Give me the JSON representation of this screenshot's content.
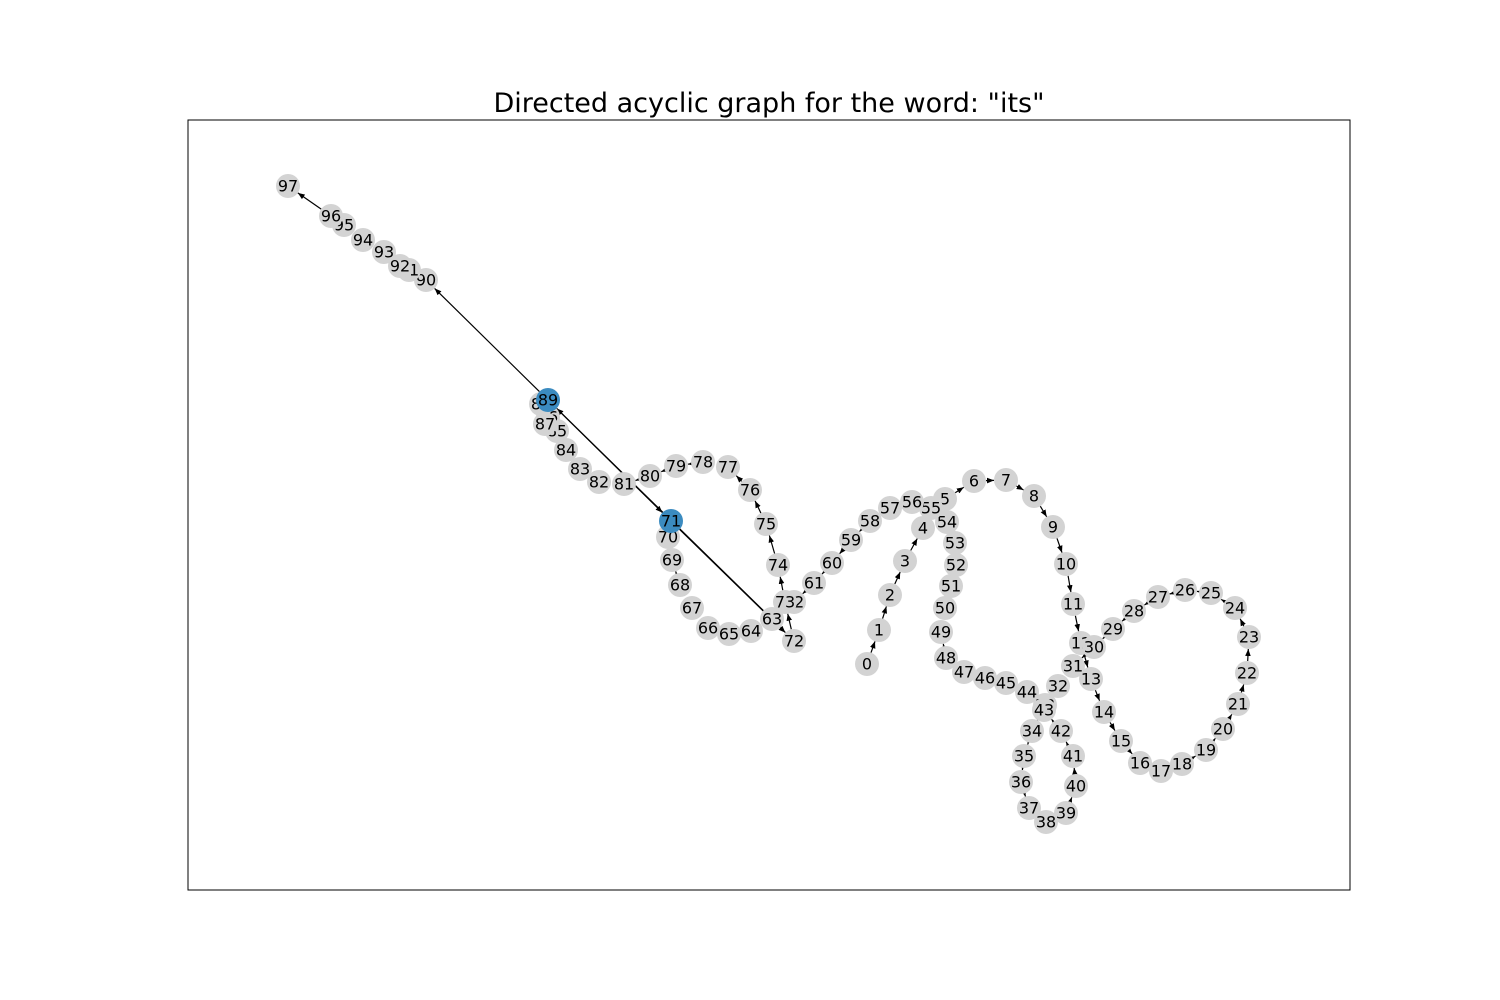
{
  "title": "Directed acyclic graph for the word: \"its\"",
  "colors": {
    "node": "#d3d3d3",
    "highlight": "#3b8bc0",
    "edge": "#000000",
    "frame": "#000000"
  },
  "graph": {
    "nodes": [
      "0",
      "1",
      "2",
      "3",
      "4",
      "5",
      "6",
      "7",
      "8",
      "9",
      "10",
      "11",
      "12",
      "13",
      "14",
      "15",
      "16",
      "17",
      "18",
      "19",
      "20",
      "21",
      "22",
      "23",
      "24",
      "25",
      "26",
      "27",
      "28",
      "29",
      "30",
      "31",
      "32",
      "33",
      "34",
      "35",
      "36",
      "37",
      "38",
      "39",
      "40",
      "41",
      "42",
      "43",
      "44",
      "45",
      "46",
      "47",
      "48",
      "49",
      "50",
      "51",
      "52",
      "53",
      "54",
      "55",
      "56",
      "57",
      "58",
      "59",
      "60",
      "61",
      "62",
      "63",
      "64",
      "65",
      "66",
      "67",
      "68",
      "69",
      "70",
      "71",
      "72",
      "73",
      "74",
      "75",
      "76",
      "77",
      "78",
      "79",
      "80",
      "81",
      "82",
      "83",
      "84",
      "85",
      "86",
      "87",
      "88",
      "89",
      "90",
      "91",
      "92",
      "93",
      "94",
      "95",
      "96",
      "97"
    ],
    "highlighted": [
      "71",
      "89"
    ],
    "edges": [
      [
        "0",
        "1"
      ],
      [
        "1",
        "2"
      ],
      [
        "2",
        "3"
      ],
      [
        "3",
        "4"
      ],
      [
        "4",
        "5"
      ],
      [
        "5",
        "6"
      ],
      [
        "6",
        "7"
      ],
      [
        "7",
        "8"
      ],
      [
        "8",
        "9"
      ],
      [
        "9",
        "10"
      ],
      [
        "10",
        "11"
      ],
      [
        "11",
        "12"
      ],
      [
        "12",
        "13"
      ],
      [
        "13",
        "14"
      ],
      [
        "14",
        "15"
      ],
      [
        "15",
        "16"
      ],
      [
        "16",
        "17"
      ],
      [
        "17",
        "18"
      ],
      [
        "18",
        "19"
      ],
      [
        "19",
        "20"
      ],
      [
        "20",
        "21"
      ],
      [
        "21",
        "22"
      ],
      [
        "22",
        "23"
      ],
      [
        "23",
        "24"
      ],
      [
        "24",
        "25"
      ],
      [
        "25",
        "26"
      ],
      [
        "26",
        "27"
      ],
      [
        "27",
        "28"
      ],
      [
        "28",
        "29"
      ],
      [
        "29",
        "30"
      ],
      [
        "30",
        "31"
      ],
      [
        "31",
        "32"
      ],
      [
        "32",
        "33"
      ],
      [
        "33",
        "34"
      ],
      [
        "34",
        "35"
      ],
      [
        "35",
        "36"
      ],
      [
        "36",
        "37"
      ],
      [
        "37",
        "38"
      ],
      [
        "38",
        "39"
      ],
      [
        "39",
        "40"
      ],
      [
        "40",
        "41"
      ],
      [
        "41",
        "42"
      ],
      [
        "42",
        "43"
      ],
      [
        "43",
        "44"
      ],
      [
        "44",
        "45"
      ],
      [
        "45",
        "46"
      ],
      [
        "46",
        "47"
      ],
      [
        "47",
        "48"
      ],
      [
        "48",
        "49"
      ],
      [
        "49",
        "50"
      ],
      [
        "50",
        "51"
      ],
      [
        "51",
        "52"
      ],
      [
        "52",
        "53"
      ],
      [
        "53",
        "54"
      ],
      [
        "54",
        "55"
      ],
      [
        "55",
        "56"
      ],
      [
        "56",
        "57"
      ],
      [
        "57",
        "58"
      ],
      [
        "58",
        "59"
      ],
      [
        "59",
        "60"
      ],
      [
        "60",
        "61"
      ],
      [
        "61",
        "62"
      ],
      [
        "62",
        "63"
      ],
      [
        "63",
        "64"
      ],
      [
        "64",
        "65"
      ],
      [
        "65",
        "66"
      ],
      [
        "66",
        "67"
      ],
      [
        "67",
        "68"
      ],
      [
        "68",
        "69"
      ],
      [
        "69",
        "70"
      ],
      [
        "70",
        "71"
      ],
      [
        "71",
        "72"
      ],
      [
        "72",
        "73"
      ],
      [
        "73",
        "74"
      ],
      [
        "74",
        "75"
      ],
      [
        "75",
        "76"
      ],
      [
        "76",
        "77"
      ],
      [
        "77",
        "78"
      ],
      [
        "78",
        "79"
      ],
      [
        "79",
        "80"
      ],
      [
        "80",
        "81"
      ],
      [
        "81",
        "82"
      ],
      [
        "82",
        "83"
      ],
      [
        "83",
        "84"
      ],
      [
        "84",
        "85"
      ],
      [
        "85",
        "86"
      ],
      [
        "86",
        "87"
      ],
      [
        "87",
        "88"
      ],
      [
        "88",
        "89"
      ],
      [
        "89",
        "90"
      ],
      [
        "90",
        "91"
      ],
      [
        "91",
        "92"
      ],
      [
        "92",
        "93"
      ],
      [
        "93",
        "94"
      ],
      [
        "94",
        "95"
      ],
      [
        "95",
        "96"
      ],
      [
        "96",
        "97"
      ],
      [
        "63",
        "89"
      ],
      [
        "89",
        "71"
      ]
    ]
  }
}
